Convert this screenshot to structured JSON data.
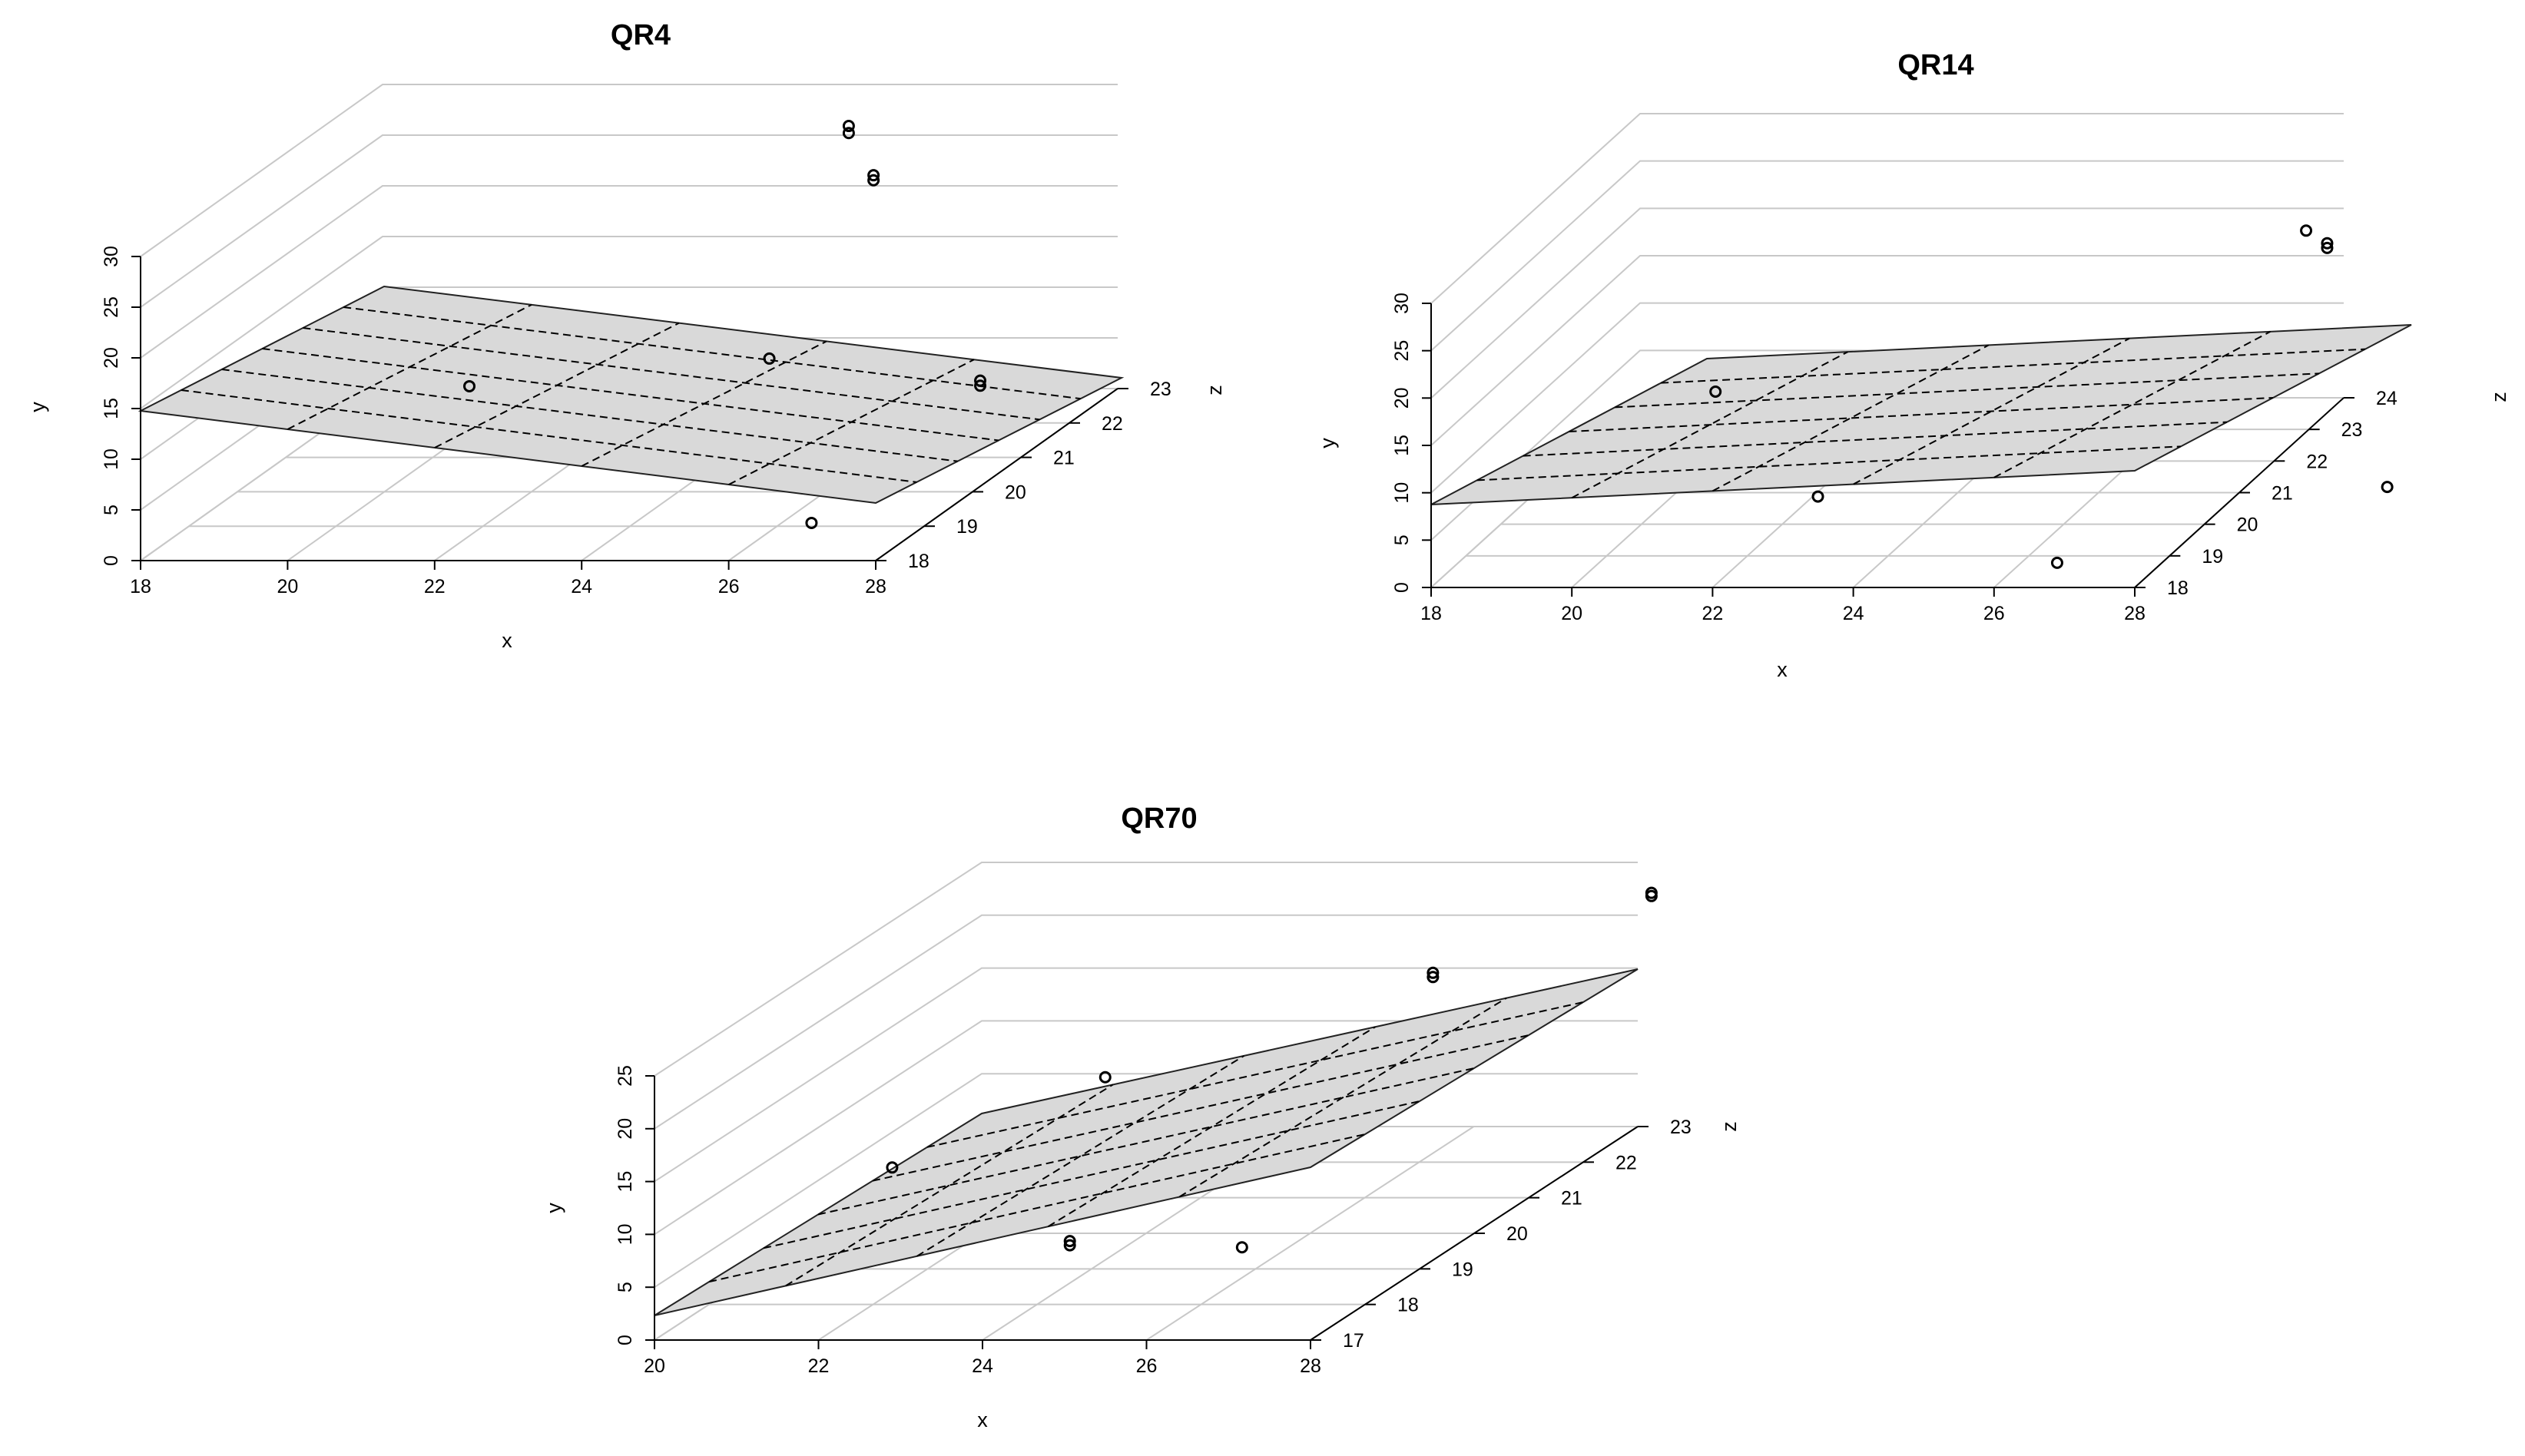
{
  "chart_data": [
    {
      "type": "scatter3d",
      "title": "QR4",
      "xlabel": "x",
      "ylabel": "y",
      "zlabel": "z",
      "xlim": [
        18,
        28
      ],
      "ylim": [
        0,
        30
      ],
      "zlim": [
        18,
        23
      ],
      "x_ticks": [
        "18",
        "20",
        "22",
        "24",
        "26",
        "28"
      ],
      "y_ticks": [
        "0",
        "5",
        "10",
        "15",
        "20",
        "25",
        "30"
      ],
      "z_ticks": [
        "18",
        "19",
        "20",
        "21",
        "22",
        "23"
      ],
      "plane": {
        "type": "regression-plane",
        "fill": "#d9d9d9",
        "grid": "dashed"
      },
      "points": [
        {
          "x": 20.3,
          "y": 6.0,
          "z": 21.3
        },
        {
          "x": 25.0,
          "y": 28.6,
          "z": 22.0
        },
        {
          "x": 25.0,
          "y": 29.3,
          "z": 22.0
        },
        {
          "x": 25.6,
          "y": 25.3,
          "z": 21.6
        },
        {
          "x": 25.6,
          "y": 25.8,
          "z": 21.6
        },
        {
          "x": 25.5,
          "y": 14.5,
          "z": 19.6
        },
        {
          "x": 26.6,
          "y": 1.0,
          "z": 18.8
        },
        {
          "x": 28.5,
          "y": 12.5,
          "z": 19.4
        },
        {
          "x": 28.5,
          "y": 13.0,
          "z": 19.4
        }
      ]
    },
    {
      "type": "scatter3d",
      "title": "QR14",
      "xlabel": "x",
      "ylabel": "y",
      "zlabel": "z",
      "xlim": [
        18,
        28
      ],
      "ylim": [
        0,
        30
      ],
      "zlim": [
        18,
        24
      ],
      "x_ticks": [
        "18",
        "20",
        "22",
        "24",
        "26",
        "28"
      ],
      "y_ticks": [
        "0",
        "5",
        "10",
        "15",
        "20",
        "25",
        "30"
      ],
      "z_ticks": [
        "18",
        "19",
        "20",
        "21",
        "22",
        "23",
        "24"
      ],
      "plane": {
        "type": "regression-plane",
        "fill": "#d9d9d9",
        "grid": "dashed"
      },
      "points": [
        {
          "x": 21.2,
          "y": 15.0,
          "z": 19.7
        },
        {
          "x": 23.2,
          "y": 7.6,
          "z": 18.6
        },
        {
          "x": 29.0,
          "y": 28.0,
          "z": 20.9
        },
        {
          "x": 29.2,
          "y": 25.5,
          "z": 21.1
        },
        {
          "x": 29.2,
          "y": 26.0,
          "z": 21.1
        },
        {
          "x": 26.6,
          "y": 0.6,
          "z": 18.6
        },
        {
          "x": 30.4,
          "y": 2.6,
          "z": 20.4
        }
      ]
    },
    {
      "type": "scatter3d",
      "title": "QR70",
      "xlabel": "x",
      "ylabel": "y",
      "zlabel": "z",
      "xlim": [
        20,
        28
      ],
      "ylim": [
        0,
        25
      ],
      "zlim": [
        17,
        23
      ],
      "x_ticks": [
        "20",
        "22",
        "24",
        "26",
        "28"
      ],
      "y_ticks": [
        "0",
        "5",
        "10",
        "15",
        "20",
        "25"
      ],
      "z_ticks": [
        "17",
        "18",
        "19",
        "20",
        "21",
        "22",
        "23"
      ],
      "plane": {
        "type": "regression-plane",
        "fill": "#d9d9d9",
        "grid": "dashed"
      },
      "points": [
        {
          "x": 22.3,
          "y": 13.3,
          "z": 17.9
        },
        {
          "x": 24.4,
          "y": 5.6,
          "z": 18.0
        },
        {
          "x": 24.4,
          "y": 6.0,
          "z": 18.0
        },
        {
          "x": 24.1,
          "y": 17.8,
          "z": 19.1
        },
        {
          "x": 26.3,
          "y": 4.4,
          "z": 18.3
        },
        {
          "x": 26.5,
          "y": 19.2,
          "z": 21.5
        },
        {
          "x": 26.5,
          "y": 19.6,
          "z": 21.5
        },
        {
          "x": 28.5,
          "y": 23.5,
          "z": 22.5
        },
        {
          "x": 28.5,
          "y": 23.8,
          "z": 22.5
        }
      ]
    }
  ]
}
